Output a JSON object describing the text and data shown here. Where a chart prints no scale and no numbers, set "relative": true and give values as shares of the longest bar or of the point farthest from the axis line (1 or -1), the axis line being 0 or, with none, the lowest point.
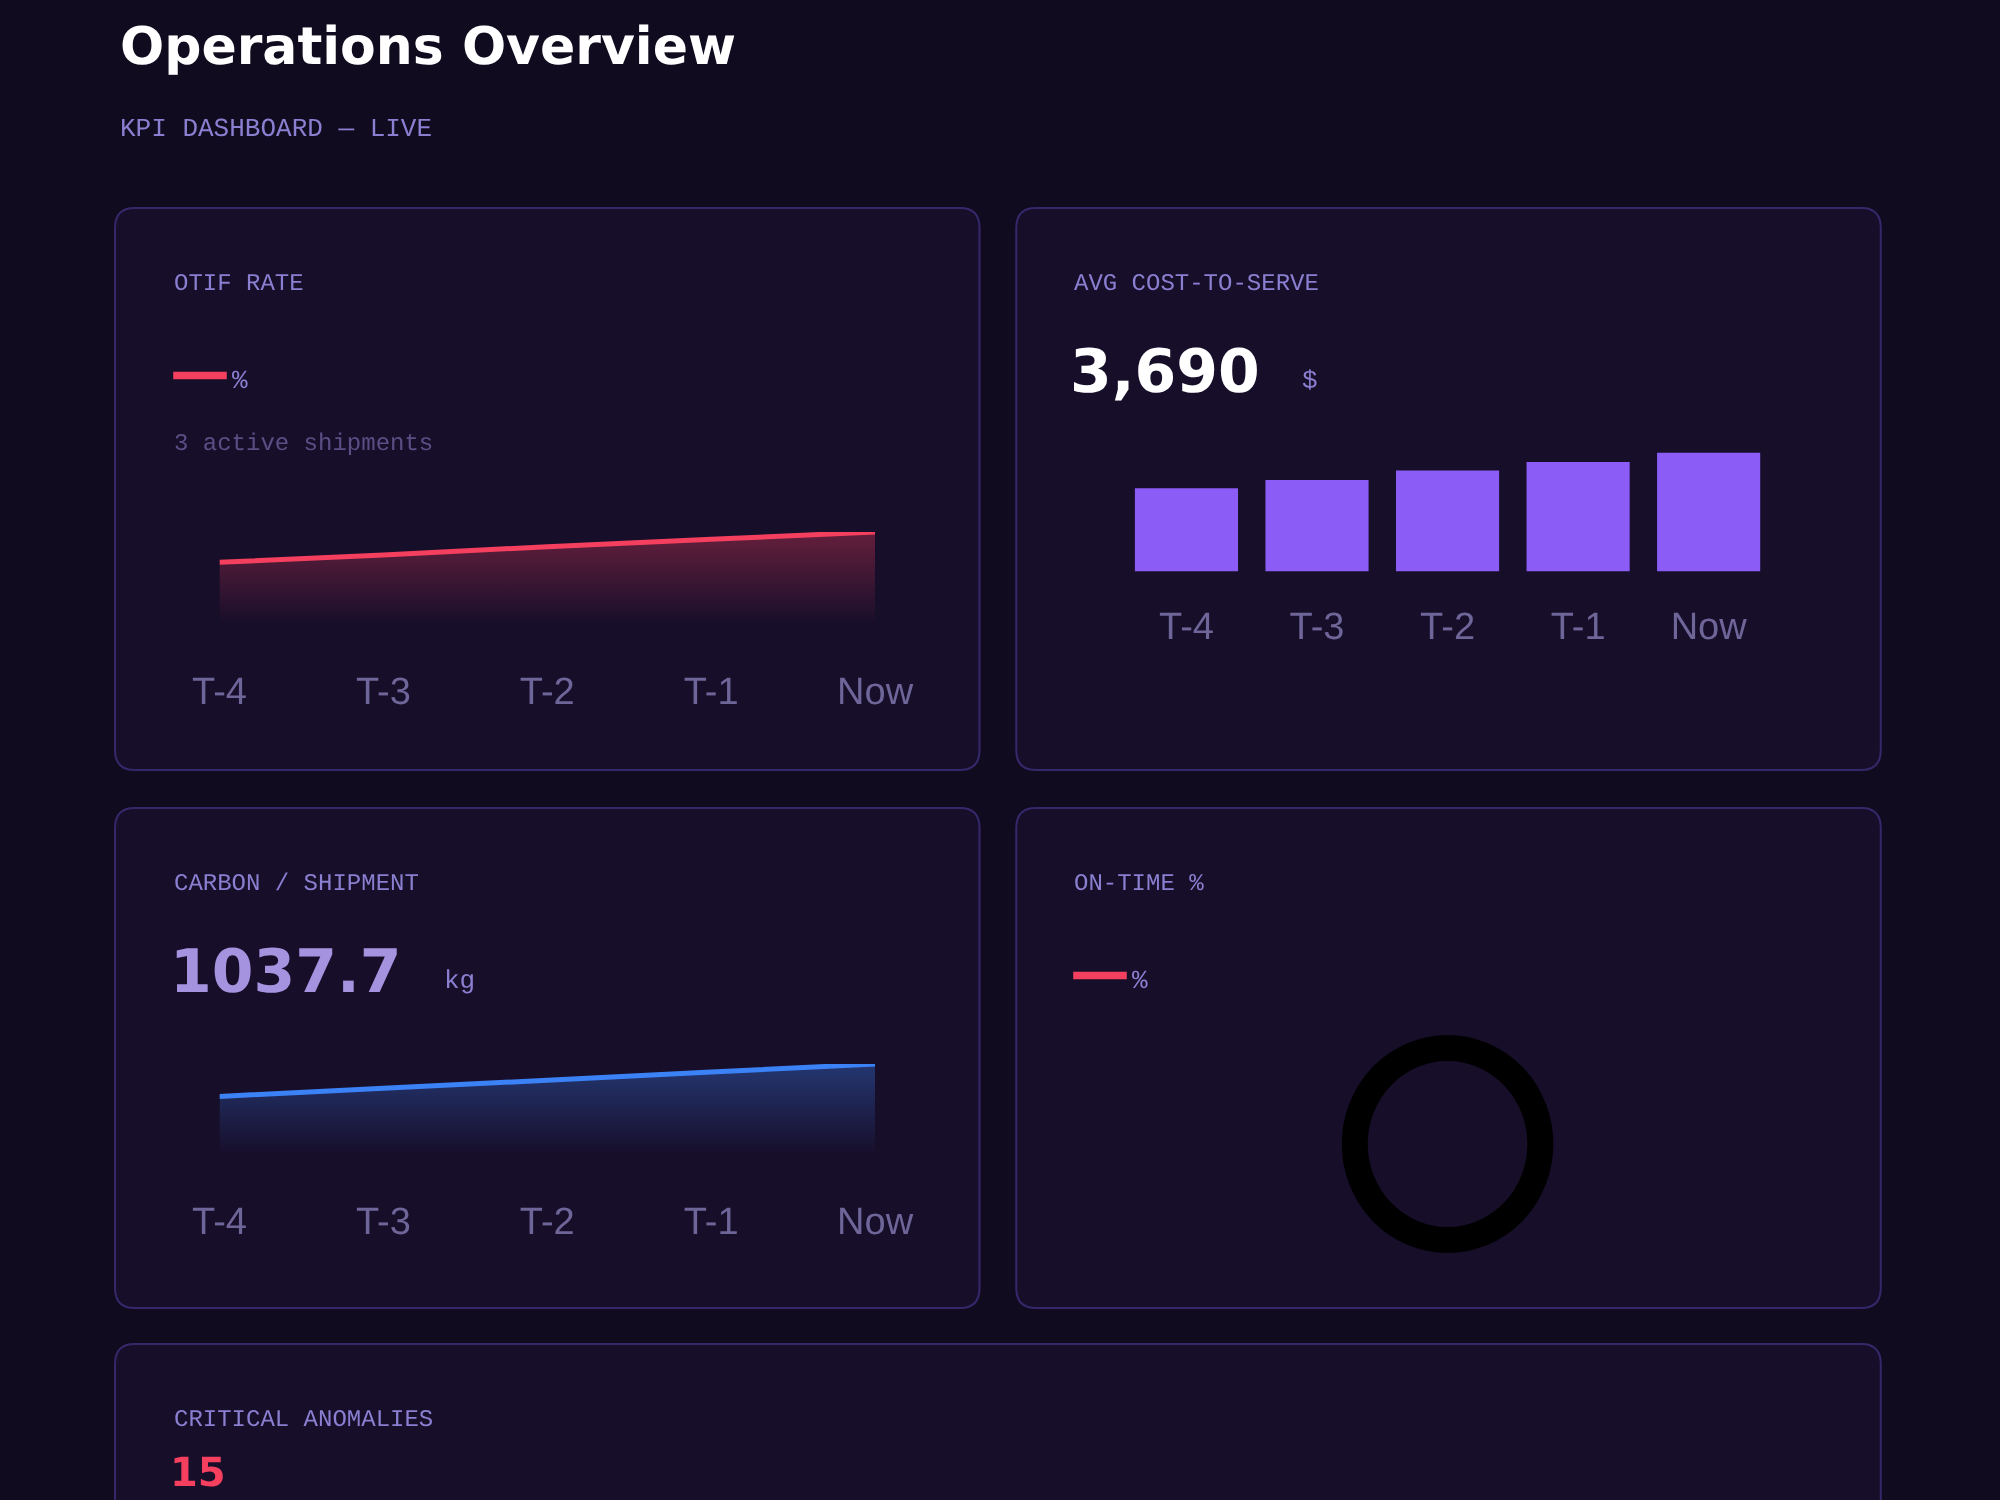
{
  "chart_data": [
    {
      "type": "other",
      "title": "Operations Overview",
      "subtitle": "KPI DASHBOARD — LIVE"
    },
    {
      "type": "area",
      "title": "OTIF RATE",
      "annotations": [
        "—",
        "%",
        "3 active shipments"
      ],
      "categories": [
        "T-4",
        "T-3",
        "T-2",
        "T-1",
        "Now"
      ],
      "relative": true,
      "tick_labels": "x",
      "series": [
        {
          "color": "#f43f5e",
          "values": [
            0.67,
            0.75,
            0.84,
            0.92,
            1.0
          ]
        }
      ]
    },
    {
      "type": "bar",
      "title": "AVG COST-TO-SERVE",
      "annotations": [
        "3,690",
        "$"
      ],
      "categories": [
        "T-4",
        "T-3",
        "T-2",
        "T-1",
        "Now"
      ],
      "relative": true,
      "tick_labels": "x",
      "series": [
        {
          "color": "#8b5cf6",
          "values": [
            0.7,
            0.77,
            0.85,
            0.92,
            1.0
          ]
        }
      ]
    },
    {
      "type": "area",
      "title": "CARBON / SHIPMENT",
      "annotations": [
        "1037.7",
        "kg"
      ],
      "categories": [
        "T-4",
        "T-3",
        "T-2",
        "T-1",
        "Now"
      ],
      "relative": true,
      "tick_labels": "x",
      "series": [
        {
          "color": "#3b82f6",
          "values": [
            0.64,
            0.73,
            0.82,
            0.91,
            1.0
          ]
        }
      ]
    },
    {
      "type": "other",
      "title": "ON-TIME %",
      "annotations": [
        "—",
        "%"
      ]
    },
    {
      "type": "other",
      "title": "CRITICAL ANOMALIES",
      "annotations": [
        "15"
      ]
    }
  ]
}
